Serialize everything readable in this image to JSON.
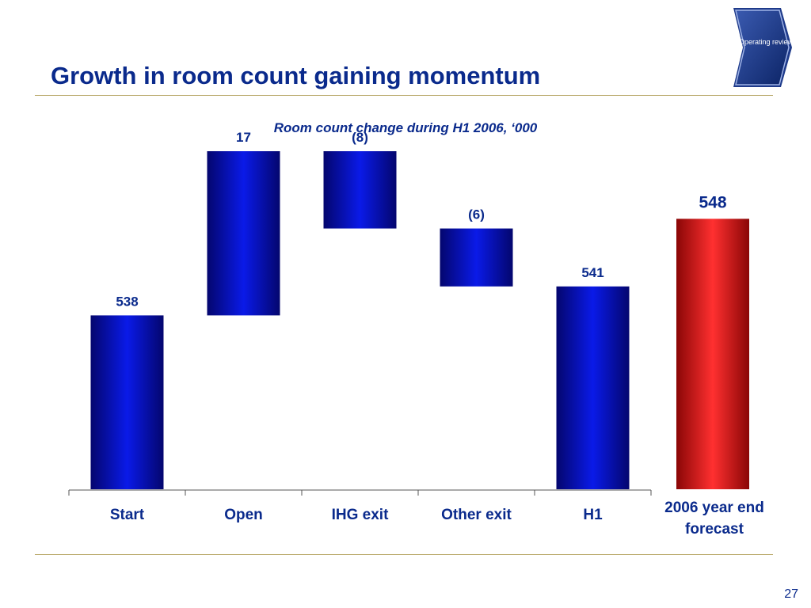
{
  "slide": {
    "title": "Growth in room count gaining momentum",
    "section_badge": "Operating review",
    "page_number": "27"
  },
  "colors": {
    "title": "#0a2a8c",
    "bar_blue": "#0a1ae0",
    "bar_red": "#e11b1b",
    "rule": "#b9a96a"
  },
  "chart_data": {
    "type": "bar",
    "subtype": "waterfall",
    "title": "Room count change during  H1 2006, ‘000",
    "xlabel": "",
    "ylabel": "",
    "unit": "'000 rooms",
    "categories": [
      "Start",
      "Open",
      "IHG exit",
      "Other exit",
      "H1",
      "2006 year end forecast"
    ],
    "steps": [
      {
        "label": "Start",
        "kind": "total",
        "value": 538,
        "value_label": "538",
        "color": "blue"
      },
      {
        "label": "Open",
        "kind": "delta",
        "value": 17,
        "value_label": "17",
        "color": "blue"
      },
      {
        "label": "IHG exit",
        "kind": "delta",
        "value": -8,
        "value_label": "(8)",
        "color": "blue"
      },
      {
        "label": "Other exit",
        "kind": "delta",
        "value": -6,
        "value_label": "(6)",
        "color": "blue"
      },
      {
        "label": "H1",
        "kind": "total",
        "value": 541,
        "value_label": "541",
        "color": "blue"
      },
      {
        "label": "2006 year end forecast",
        "kind": "total",
        "value": 548,
        "value_label": "548",
        "color": "red",
        "emphasis": true
      }
    ],
    "grid": false,
    "legend": "none"
  }
}
